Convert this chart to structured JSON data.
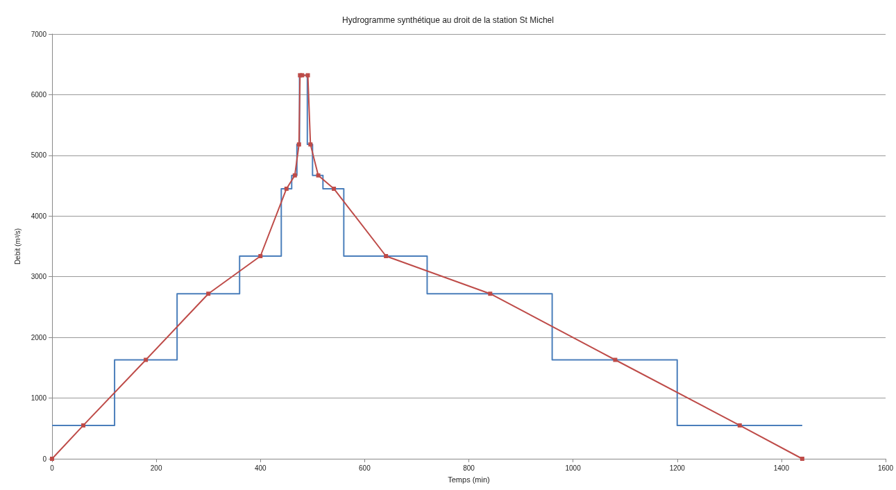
{
  "chart_data": {
    "type": "line",
    "title": "Hydrogramme synthétique au droit de la station St Michel",
    "xlabel": "Temps (min)",
    "ylabel": "Debit (m³/s)",
    "xlim": [
      0,
      1600
    ],
    "xticks": [
      0,
      200,
      400,
      600,
      800,
      1000,
      1200,
      1400,
      1600
    ],
    "ylim": [
      0,
      7000
    ],
    "yticks": [
      0,
      1000,
      2000,
      3000,
      4000,
      5000,
      6000,
      7000
    ],
    "grid": "y",
    "series": [
      {
        "type": "step",
        "color": "#4a7ebb",
        "marker": "none",
        "x": [
          0,
          120,
          240,
          360,
          440,
          460,
          470,
          475,
          490,
          500,
          520,
          560,
          720,
          960,
          1200,
          1440
        ],
        "values": [
          550,
          1630,
          2720,
          3340,
          4450,
          4670,
          5180,
          6320,
          5180,
          4670,
          4450,
          3340,
          2720,
          1630,
          550,
          550
        ]
      },
      {
        "type": "line",
        "color": "#be4b48",
        "marker": "square",
        "x": [
          0,
          60,
          180,
          300,
          400,
          450,
          466,
          474,
          476,
          480,
          491,
          496,
          511,
          541,
          641,
          841,
          1081,
          1320,
          1440
        ],
        "values": [
          0,
          550,
          1630,
          2720,
          3340,
          4450,
          4670,
          5180,
          6320,
          6320,
          6320,
          5180,
          4670,
          4450,
          3340,
          2720,
          1630,
          550,
          0
        ]
      }
    ]
  }
}
